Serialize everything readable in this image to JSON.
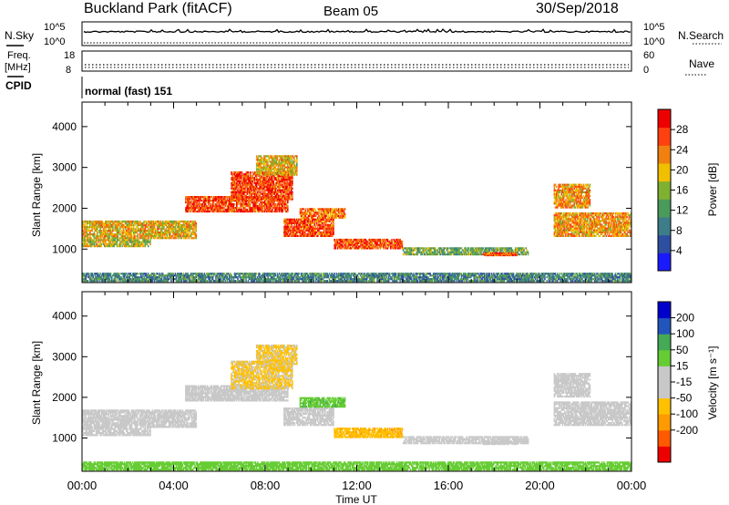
{
  "header": {
    "site": "Buckland Park (fitACF)",
    "beam": "Beam 05",
    "date": "30/Sep/2018"
  },
  "panels": {
    "nsky_label": "N.Sky",
    "nsky_ticks": [
      "10^5",
      "10^0"
    ],
    "nsearch_label": "N.Search",
    "nsearch_ticks": [
      "10^5",
      "10^0"
    ],
    "freq_label_1": "Freq.",
    "freq_label_2": "[MHz]",
    "freq_ticks": [
      "18",
      "8"
    ],
    "nave_label": "Nave",
    "nave_ticks": [
      "60",
      "0"
    ],
    "cpid_label": "CPID",
    "cpid_value": "normal (fast) 151"
  },
  "colors": {
    "power": [
      "#1a1aff",
      "#2e4fa0",
      "#3d7d8a",
      "#4a9a5c",
      "#7fb030",
      "#f0c000",
      "#f08010",
      "#ff4010",
      "#ee0000"
    ],
    "velocity": [
      "#ee0000",
      "#ff5a00",
      "#ff9a00",
      "#ffc000",
      "#c8c8c8",
      "#c8c8c8",
      "#66cc33",
      "#44aa55",
      "#2255bb",
      "#0000cc"
    ],
    "white": "#ffffff"
  },
  "chart_data": [
    {
      "type": "heatmap",
      "name": "power",
      "ylabel": "Slant Range [km]",
      "yticks": [
        "4000",
        "3000",
        "2000",
        "1000"
      ],
      "ytick_values": [
        4000,
        3000,
        2000,
        1000
      ],
      "ylim": [
        180,
        4600
      ],
      "xlim_hours": [
        0,
        24
      ],
      "xticks": [
        "00:00",
        "04:00",
        "08:00",
        "12:00",
        "16:00",
        "20:00",
        "00:00"
      ],
      "colorbar_label": "Power [dB]",
      "colorbar_ticks": [
        "28",
        "24",
        "20",
        "16",
        "12",
        "8",
        "4"
      ],
      "colorbar_range": [
        0,
        32
      ]
    },
    {
      "type": "heatmap",
      "name": "velocity",
      "ylabel": "Slant Range [km]",
      "yticks": [
        "4000",
        "3000",
        "2000",
        "1000"
      ],
      "ytick_values": [
        4000,
        3000,
        2000,
        1000
      ],
      "ylim": [
        180,
        4600
      ],
      "xlim_hours": [
        0,
        24
      ],
      "xticks": [
        "00:00",
        "04:00",
        "08:00",
        "12:00",
        "16:00",
        "20:00",
        "00:00"
      ],
      "xlabel": "Time UT",
      "colorbar_label": "Velocity [m s⁻¹]",
      "colorbar_ticks": [
        "200",
        "100",
        "50",
        "15",
        "-15",
        "-50",
        "-100",
        "-200"
      ]
    }
  ],
  "echo_regions": [
    {
      "t0": 0.0,
      "t1": 5.0,
      "r0": 1250,
      "r1": 1700,
      "power": 20,
      "vel": 0
    },
    {
      "t0": 0.0,
      "t1": 3.0,
      "r0": 1050,
      "r1": 1250,
      "power": 18,
      "vel": 0
    },
    {
      "t0": 4.5,
      "t1": 9.0,
      "r0": 1900,
      "r1": 2300,
      "power": 27,
      "vel": 0
    },
    {
      "t0": 6.5,
      "t1": 9.2,
      "r0": 2200,
      "r1": 2900,
      "power": 27,
      "vel": -20
    },
    {
      "t0": 7.6,
      "t1": 9.4,
      "r0": 2800,
      "r1": 3300,
      "power": 20,
      "vel": -20
    },
    {
      "t0": 8.8,
      "t1": 11.0,
      "r0": 1300,
      "r1": 1750,
      "power": 26,
      "vel": 0
    },
    {
      "t0": 9.5,
      "t1": 11.5,
      "r0": 1750,
      "r1": 2000,
      "power": 24,
      "vel": 40
    },
    {
      "t0": 11.0,
      "t1": 14.0,
      "r0": 1000,
      "r1": 1250,
      "power": 26,
      "vel": -40
    },
    {
      "t0": 14.0,
      "t1": 19.5,
      "r0": 850,
      "r1": 1050,
      "power": 14,
      "vel": 0
    },
    {
      "t0": 17.5,
      "t1": 19.0,
      "r0": 830,
      "r1": 900,
      "power": 26,
      "vel": 0
    },
    {
      "t0": 20.6,
      "t1": 24.0,
      "r0": 1300,
      "r1": 1900,
      "power": 22,
      "vel": 0
    },
    {
      "t0": 20.6,
      "t1": 22.2,
      "r0": 2000,
      "r1": 2600,
      "power": 22,
      "vel": 0
    },
    {
      "t0": 0.0,
      "t1": 24.0,
      "r0": 200,
      "r1": 420,
      "power": 10,
      "vel": 30
    }
  ]
}
